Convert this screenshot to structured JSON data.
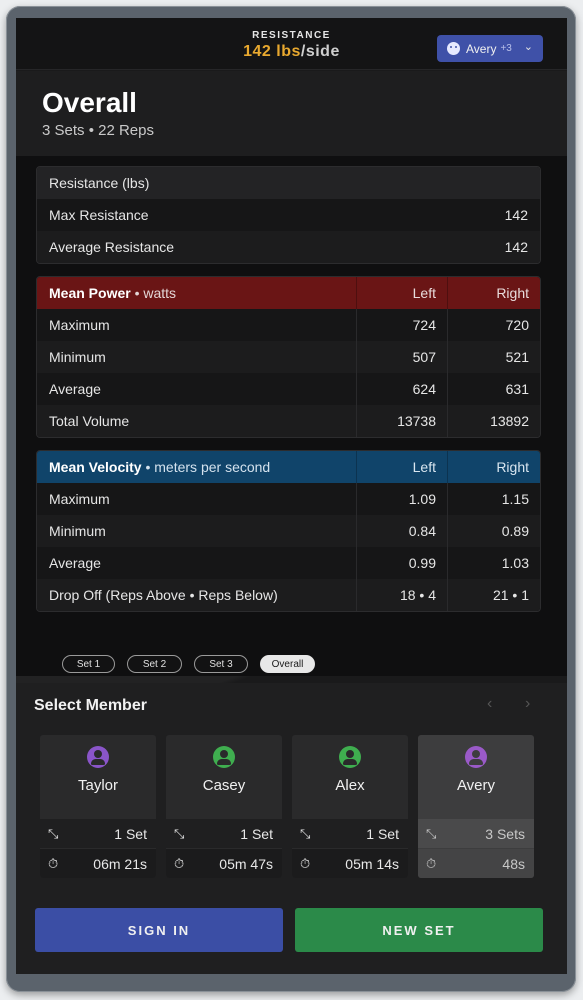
{
  "header": {
    "resistance_label": "RESISTANCE",
    "resistance_value": "142 lbs",
    "resistance_unit": "/side",
    "user_name": "Avery",
    "user_extra": "+3",
    "accent_color": "#e9a92f"
  },
  "title": {
    "heading": "Overall",
    "subheading": "3 Sets • 22 Reps"
  },
  "resistance_table": {
    "header": "Resistance (lbs)",
    "rows": [
      {
        "label": "Max Resistance",
        "value": "142"
      },
      {
        "label": "Average Resistance",
        "value": "142"
      }
    ]
  },
  "power_table": {
    "title": "Mean Power",
    "unit": " • watts",
    "col_left": "Left",
    "col_right": "Right",
    "color": "#6a1515",
    "rows": [
      {
        "label": "Maximum",
        "left": "724",
        "right": "720"
      },
      {
        "label": "Minimum",
        "left": "507",
        "right": "521"
      },
      {
        "label": "Average",
        "left": "624",
        "right": "631"
      },
      {
        "label": "Total Volume",
        "left": "13738",
        "right": "13892"
      }
    ]
  },
  "velocity_table": {
    "title": "Mean Velocity",
    "unit": " • meters per second",
    "col_left": "Left",
    "col_right": "Right",
    "color": "#10446a",
    "rows": [
      {
        "label": "Maximum",
        "left": "1.09",
        "right": "1.15"
      },
      {
        "label": "Minimum",
        "left": "0.84",
        "right": "0.89"
      },
      {
        "label": "Average",
        "left": "0.99",
        "right": "1.03"
      },
      {
        "label": "Drop Off (Reps Above • Reps Below)",
        "left": "18 • 4",
        "right": "21 • 1"
      }
    ]
  },
  "set_tabs": [
    {
      "label": "Set 1",
      "active": false
    },
    {
      "label": "Set 2",
      "active": false
    },
    {
      "label": "Set 3",
      "active": false
    },
    {
      "label": "Overall",
      "active": true
    }
  ],
  "members": {
    "title": "Select Member",
    "prev_icon": "‹",
    "next_icon": "›",
    "list": [
      {
        "name": "Taylor",
        "sets": "1 Set",
        "time": "06m 21s",
        "avatar_color": "#8a55c9",
        "selected": false
      },
      {
        "name": "Casey",
        "sets": "1 Set",
        "time": "05m 47s",
        "avatar_color": "#3fae4f",
        "selected": false
      },
      {
        "name": "Alex",
        "sets": "1 Set",
        "time": "05m 14s",
        "avatar_color": "#3fae4f",
        "selected": false
      },
      {
        "name": "Avery",
        "sets": "3 Sets",
        "time": "48s",
        "avatar_color": "#9a5ac8",
        "selected": true
      }
    ]
  },
  "buttons": {
    "sign_in": "SIGN IN",
    "new_set": "NEW SET"
  }
}
